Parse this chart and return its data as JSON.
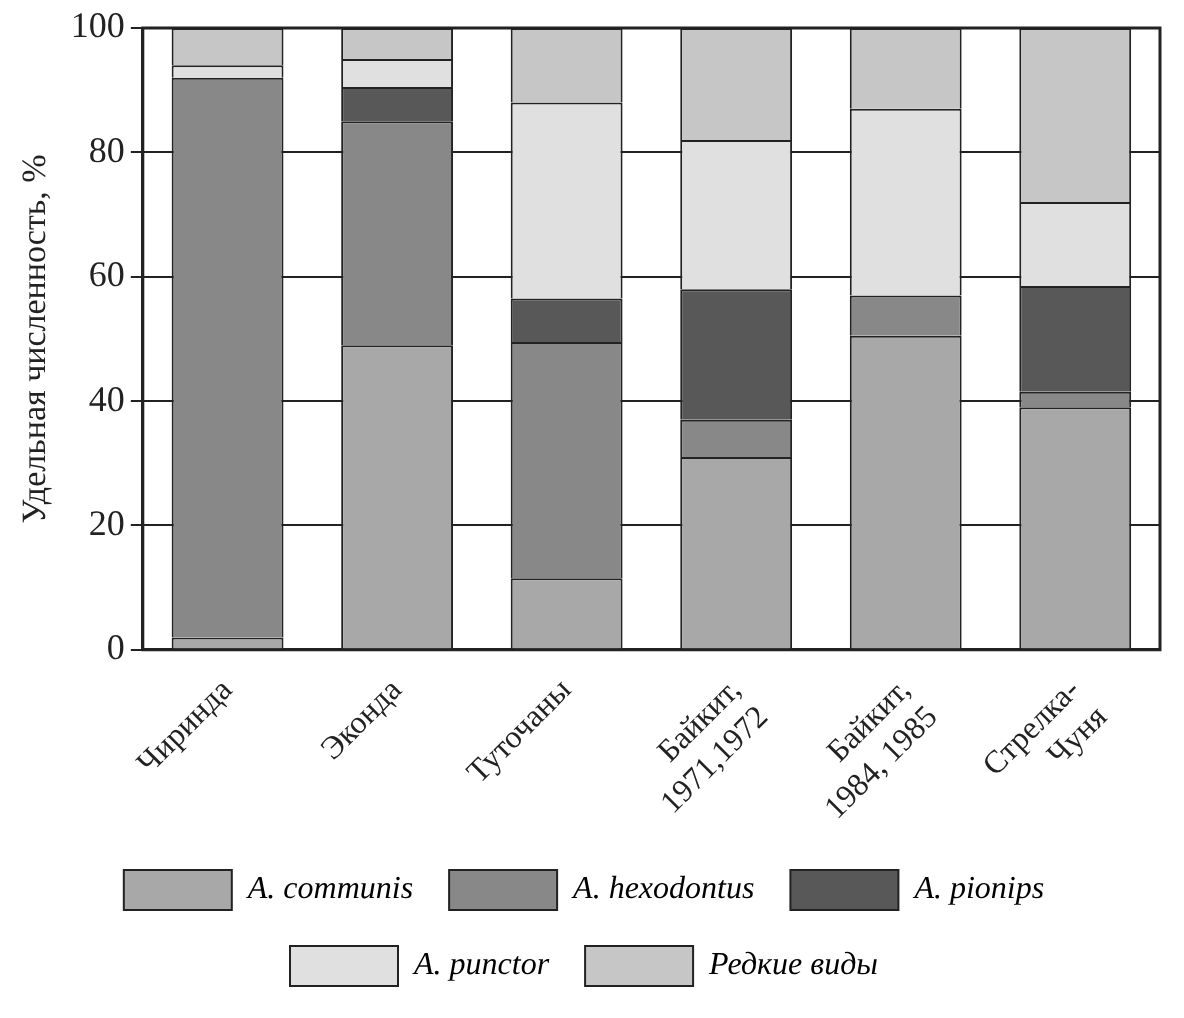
{
  "chart_data": {
    "type": "bar",
    "stacked": true,
    "ylabel": "Удельная численность, %",
    "categories": [
      "Чиринда",
      "Эконда",
      "Туточаны",
      "Байкит,\n1971,1972",
      "Байкит,\n1984, 1985",
      "Стрелка-\nЧуня"
    ],
    "series": [
      {
        "name": "A. communis",
        "color": "#a8a8a8",
        "values": [
          2,
          49,
          11.5,
          31,
          50.5,
          39
        ]
      },
      {
        "name": "A. hexodontus",
        "color": "#888888",
        "values": [
          90,
          36,
          38,
          6,
          6.5,
          2.5
        ]
      },
      {
        "name": "A. pionips",
        "color": "#585858",
        "values": [
          0,
          5.5,
          7,
          21,
          0,
          17
        ]
      },
      {
        "name": "A. punctor",
        "color": "#e0e0e0",
        "values": [
          2,
          4.5,
          31.5,
          24,
          30,
          13.5
        ]
      },
      {
        "name": "Редкие виды",
        "color": "#c6c6c6",
        "values": [
          6,
          5,
          12,
          18,
          13,
          28
        ]
      }
    ],
    "ylim": [
      0,
      100
    ],
    "yticks": [
      0,
      20,
      40,
      60,
      80,
      100
    ],
    "grid": "y",
    "legend": "bottom"
  }
}
